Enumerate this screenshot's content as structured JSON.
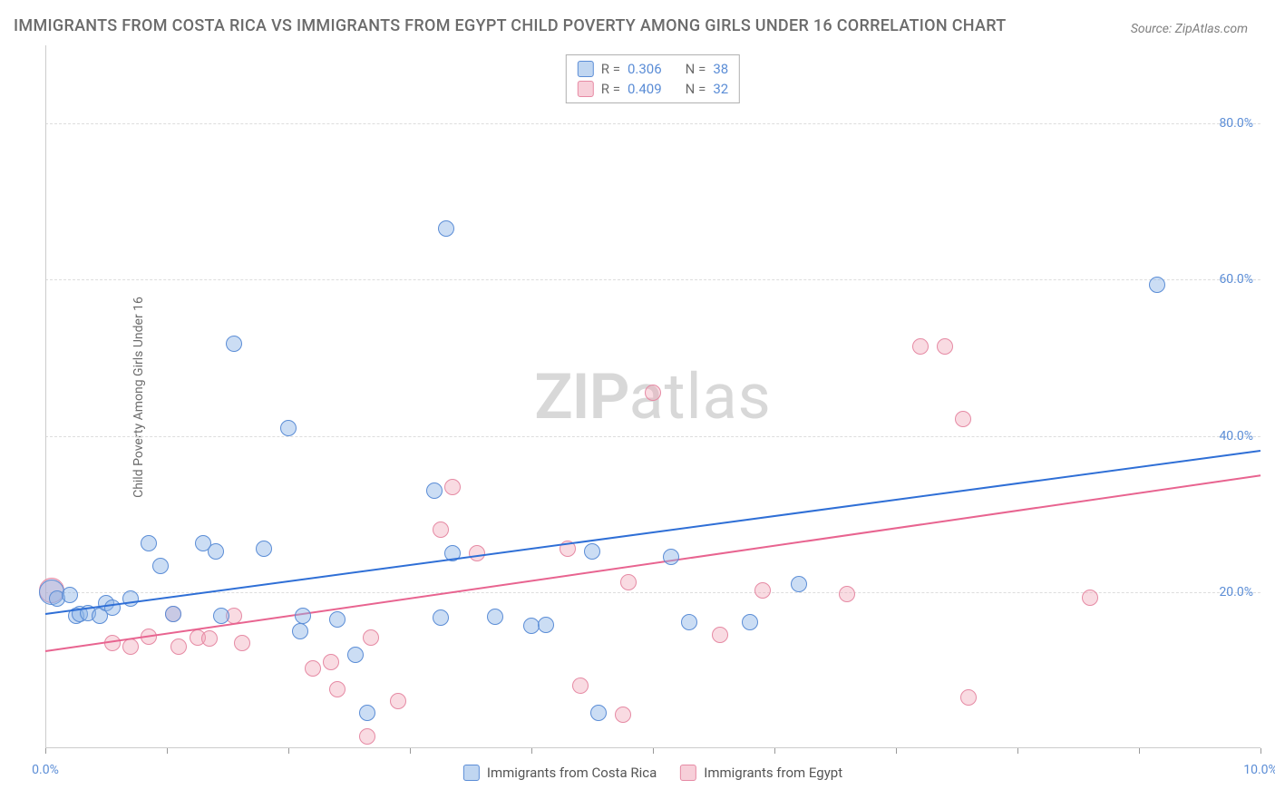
{
  "title": "IMMIGRANTS FROM COSTA RICA VS IMMIGRANTS FROM EGYPT CHILD POVERTY AMONG GIRLS UNDER 16 CORRELATION CHART",
  "source": "Source: ZipAtlas.com",
  "y_label": "Child Poverty Among Girls Under 16",
  "watermark_bold": "ZIP",
  "watermark_rest": "atlas",
  "chart": {
    "type": "scatter",
    "xlim": [
      0,
      10
    ],
    "ylim": [
      0,
      90
    ],
    "x_ticks": [
      {
        "value": 0,
        "label": "0.0%"
      },
      {
        "value": 10,
        "label": "10.0%"
      }
    ],
    "y_ticks": [
      {
        "value": 20,
        "label": "20.0%"
      },
      {
        "value": 40,
        "label": "40.0%"
      },
      {
        "value": 60,
        "label": "60.0%"
      },
      {
        "value": 80,
        "label": "80.0%"
      }
    ],
    "x_tick_marks": [
      0,
      1,
      2,
      3,
      4,
      5,
      6,
      7,
      8,
      9,
      10
    ],
    "background_color": "#ffffff",
    "grid_color": "#dddddd",
    "axis_color": "#cccccc",
    "text_color": "#6b6b6b",
    "tick_label_color": "#5b8dd6",
    "marker_radius": 9,
    "cluster_marker_radius": 14,
    "series": [
      {
        "key": "costa_rica",
        "label": "Immigrants from Costa Rica",
        "color_fill": "rgba(140,180,230,0.45)",
        "color_stroke": "#5b8dd6",
        "R": "0.306",
        "N": "38",
        "trend": {
          "y_at_x0": 17.3,
          "y_at_x10": 38.2,
          "color": "#2f6fd6",
          "width": 2
        },
        "points": [
          {
            "x": 0.05,
            "y": 20.0,
            "r": 14
          },
          {
            "x": 0.1,
            "y": 19.2
          },
          {
            "x": 0.2,
            "y": 19.6
          },
          {
            "x": 0.25,
            "y": 17.0
          },
          {
            "x": 0.28,
            "y": 17.2
          },
          {
            "x": 0.35,
            "y": 17.3
          },
          {
            "x": 0.45,
            "y": 17.0
          },
          {
            "x": 0.5,
            "y": 18.6
          },
          {
            "x": 0.55,
            "y": 18.0
          },
          {
            "x": 0.7,
            "y": 19.2
          },
          {
            "x": 0.85,
            "y": 26.3
          },
          {
            "x": 0.95,
            "y": 23.4
          },
          {
            "x": 1.05,
            "y": 17.2
          },
          {
            "x": 1.3,
            "y": 26.3
          },
          {
            "x": 1.4,
            "y": 25.2
          },
          {
            "x": 1.45,
            "y": 17.0
          },
          {
            "x": 1.55,
            "y": 51.8
          },
          {
            "x": 1.8,
            "y": 25.5
          },
          {
            "x": 2.0,
            "y": 41.0
          },
          {
            "x": 2.1,
            "y": 15.0
          },
          {
            "x": 2.12,
            "y": 17.0
          },
          {
            "x": 2.4,
            "y": 16.5
          },
          {
            "x": 2.55,
            "y": 12.0
          },
          {
            "x": 2.65,
            "y": 4.5
          },
          {
            "x": 3.2,
            "y": 33.0
          },
          {
            "x": 3.25,
            "y": 16.7
          },
          {
            "x": 3.3,
            "y": 66.5
          },
          {
            "x": 3.35,
            "y": 25.0
          },
          {
            "x": 3.7,
            "y": 16.8
          },
          {
            "x": 4.0,
            "y": 15.7
          },
          {
            "x": 4.12,
            "y": 15.8
          },
          {
            "x": 4.5,
            "y": 25.2
          },
          {
            "x": 4.55,
            "y": 4.5
          },
          {
            "x": 5.15,
            "y": 24.5
          },
          {
            "x": 5.3,
            "y": 16.2
          },
          {
            "x": 5.8,
            "y": 16.2
          },
          {
            "x": 6.2,
            "y": 21.0
          },
          {
            "x": 9.15,
            "y": 59.3
          }
        ]
      },
      {
        "key": "egypt",
        "label": "Immigrants from Egypt",
        "color_fill": "rgba(240,160,180,0.38)",
        "color_stroke": "#e68aa4",
        "R": "0.409",
        "N": "32",
        "trend": {
          "y_at_x0": 12.5,
          "y_at_x10": 35.0,
          "color": "#e86490",
          "width": 2
        },
        "points": [
          {
            "x": 0.05,
            "y": 20.2,
            "r": 14
          },
          {
            "x": 0.55,
            "y": 13.5
          },
          {
            "x": 0.7,
            "y": 13.0
          },
          {
            "x": 0.85,
            "y": 14.3
          },
          {
            "x": 1.05,
            "y": 17.2
          },
          {
            "x": 1.1,
            "y": 13.0
          },
          {
            "x": 1.25,
            "y": 14.2
          },
          {
            "x": 1.35,
            "y": 14.0
          },
          {
            "x": 1.55,
            "y": 17.0
          },
          {
            "x": 1.62,
            "y": 13.5
          },
          {
            "x": 2.2,
            "y": 10.2
          },
          {
            "x": 2.35,
            "y": 11.0
          },
          {
            "x": 2.4,
            "y": 7.5
          },
          {
            "x": 2.65,
            "y": 1.5
          },
          {
            "x": 2.68,
            "y": 14.2
          },
          {
            "x": 2.9,
            "y": 6.0
          },
          {
            "x": 3.25,
            "y": 28.0
          },
          {
            "x": 3.35,
            "y": 33.5
          },
          {
            "x": 3.55,
            "y": 25.0
          },
          {
            "x": 4.3,
            "y": 25.5
          },
          {
            "x": 4.4,
            "y": 8.0
          },
          {
            "x": 4.75,
            "y": 4.3
          },
          {
            "x": 4.8,
            "y": 21.3
          },
          {
            "x": 5.0,
            "y": 45.5
          },
          {
            "x": 5.55,
            "y": 14.5
          },
          {
            "x": 5.9,
            "y": 20.2
          },
          {
            "x": 6.6,
            "y": 19.8
          },
          {
            "x": 7.2,
            "y": 51.5
          },
          {
            "x": 7.4,
            "y": 51.5
          },
          {
            "x": 7.55,
            "y": 42.2
          },
          {
            "x": 7.6,
            "y": 6.5
          },
          {
            "x": 8.6,
            "y": 19.3
          }
        ]
      }
    ]
  },
  "legend_top": {
    "r_label": "R =",
    "n_label": "N ="
  }
}
